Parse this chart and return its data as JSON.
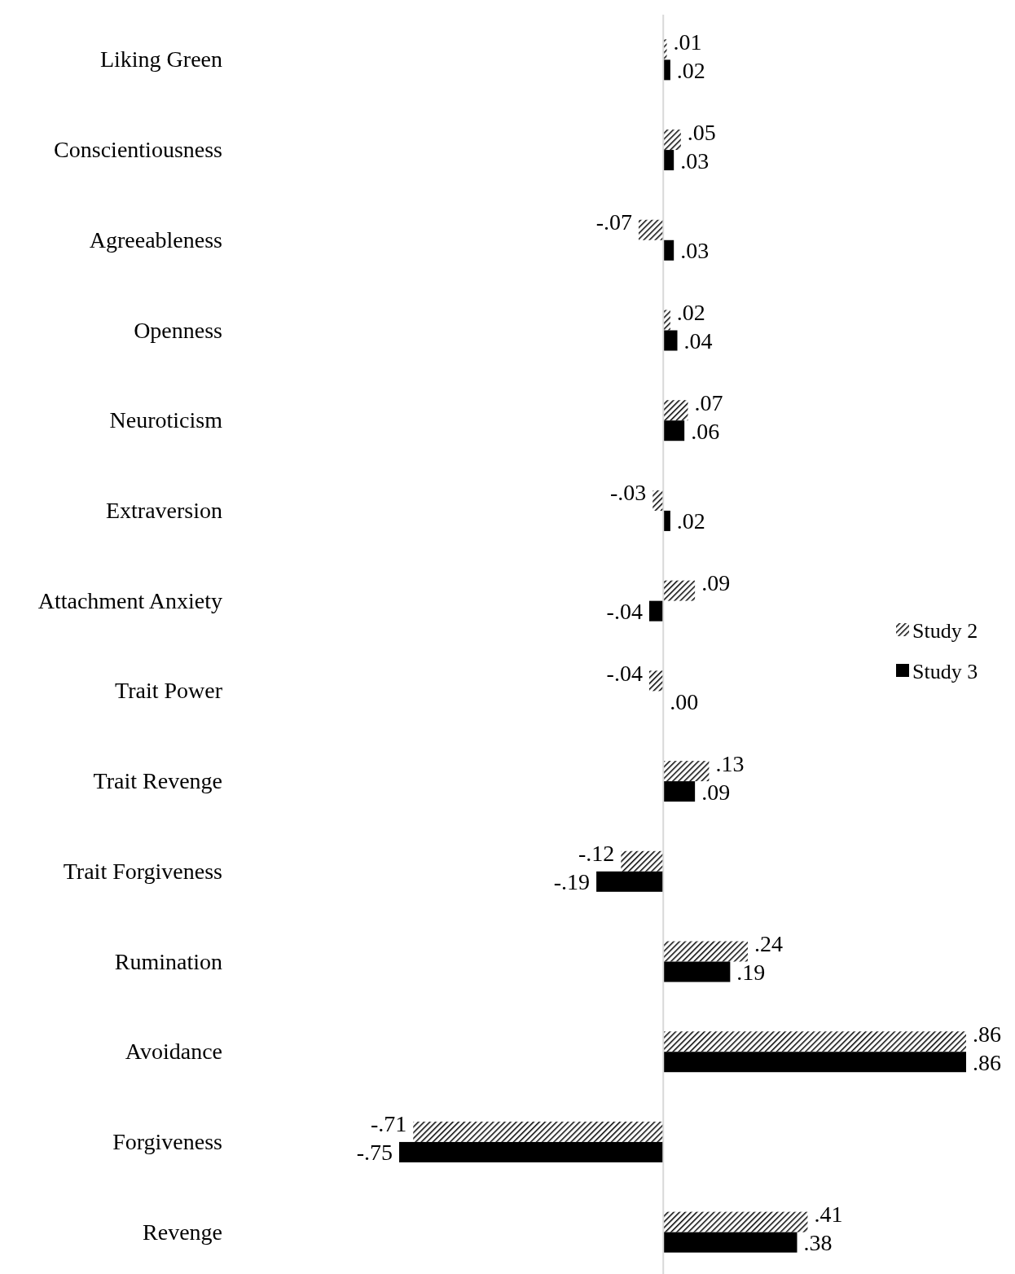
{
  "chart_data": {
    "type": "bar",
    "orientation": "horizontal",
    "categories": [
      "Liking Green",
      "Conscientiousness",
      "Agreeableness",
      "Openness",
      "Neuroticism",
      "Extraversion",
      "Attachment Anxiety",
      "Trait Power",
      "Trait Revenge",
      "Trait Forgiveness",
      "Rumination",
      "Avoidance",
      "Forgiveness",
      "Revenge"
    ],
    "series": [
      {
        "name": "Study 2",
        "color": "#000000",
        "values": [
          0.01,
          0.05,
          -0.07,
          0.02,
          0.07,
          -0.03,
          0.09,
          -0.04,
          0.13,
          -0.12,
          0.24,
          0.86,
          -0.71,
          0.41
        ],
        "value_labels": [
          ".01",
          ".05",
          "-.07",
          ".02",
          ".07",
          "-.03",
          ".09",
          "-.04",
          ".13",
          "-.12",
          ".24",
          ".86",
          "-.71",
          ".41"
        ]
      },
      {
        "name": "Study 3",
        "color": "#000000",
        "values": [
          0.02,
          0.03,
          0.03,
          0.04,
          0.06,
          0.02,
          -0.04,
          0.0,
          0.09,
          -0.19,
          0.19,
          0.86,
          -0.75,
          0.38
        ],
        "value_labels": [
          ".02",
          ".03",
          ".03",
          ".04",
          ".06",
          ".02",
          "-.04",
          ".00",
          ".09",
          "-.19",
          ".19",
          ".86",
          "-.75",
          ".38"
        ]
      }
    ],
    "legend": "right"
  }
}
